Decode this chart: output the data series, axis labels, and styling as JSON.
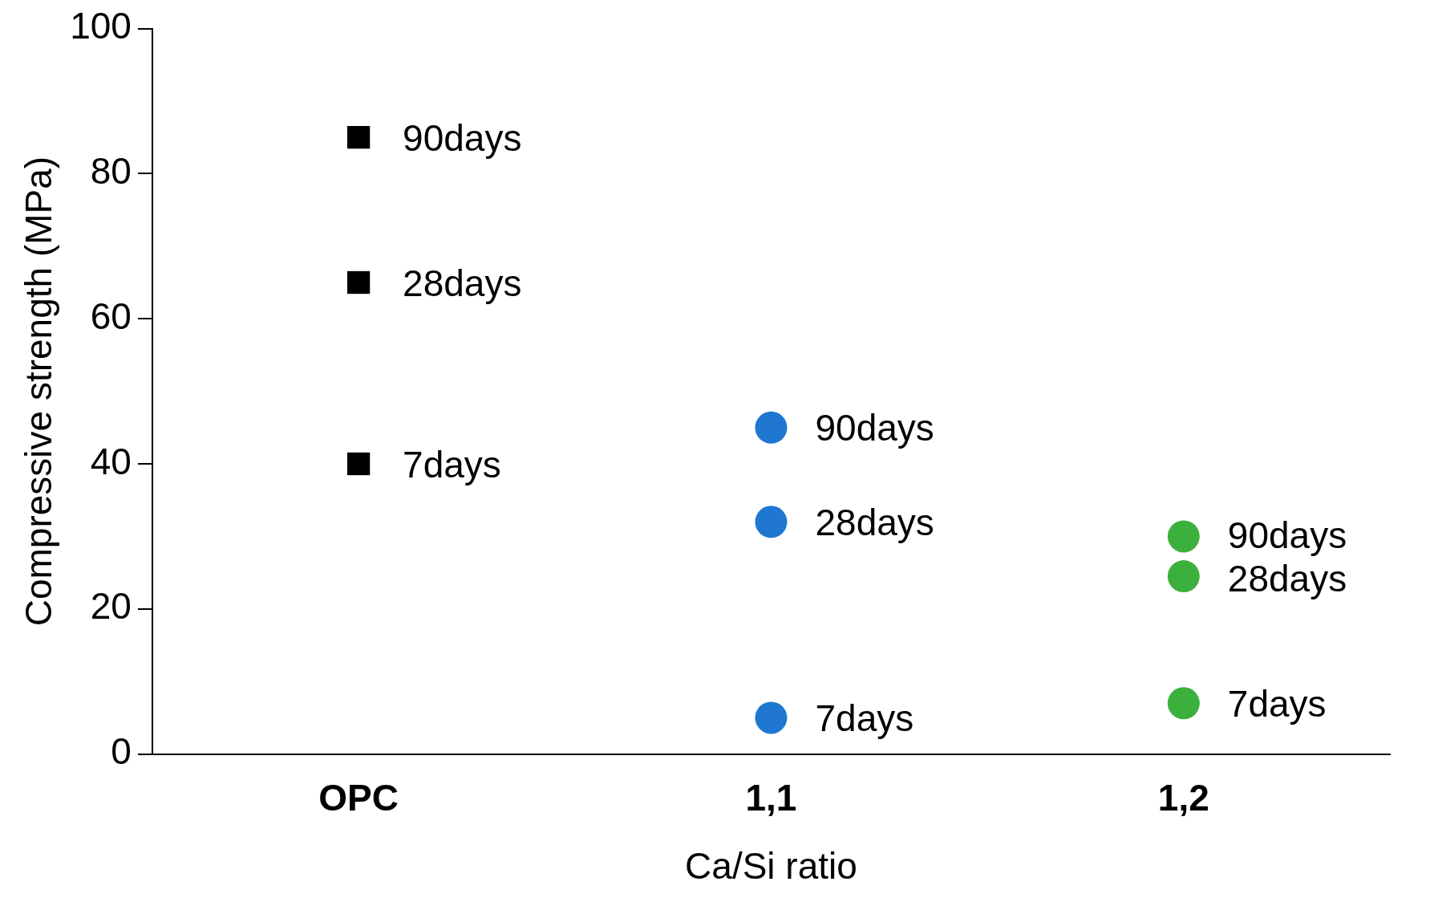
{
  "chart_data": {
    "type": "scatter",
    "xlabel": "Ca/Si ratio",
    "ylabel": "Compressive strength (MPa)",
    "categories": [
      "OPC",
      "1,1",
      "1,2"
    ],
    "series": [
      {
        "color": "#000000",
        "marker": "square",
        "x": [
          "OPC",
          "OPC",
          "OPC"
        ],
        "values": [
          85,
          65,
          40
        ]
      },
      {
        "color": "#1f77d2",
        "marker": "circle",
        "x": [
          "1,1",
          "1,1",
          "1,1"
        ],
        "values": [
          45,
          32,
          5
        ]
      },
      {
        "color": "#3cb03c",
        "marker": "circle",
        "x": [
          "1,2",
          "1,2",
          "1,2"
        ],
        "values": [
          30,
          24.5,
          7
        ]
      }
    ],
    "annotations": [
      {
        "text": "90days",
        "x": "OPC",
        "y": 85
      },
      {
        "text": "28days",
        "x": "OPC",
        "y": 65
      },
      {
        "text": "7days",
        "x": "OPC",
        "y": 40
      },
      {
        "text": "90days",
        "x": "1,1",
        "y": 45
      },
      {
        "text": "28days",
        "x": "1,1",
        "y": 32
      },
      {
        "text": "7days",
        "x": "1,1",
        "y": 5
      },
      {
        "text": "90days",
        "x": "1,2",
        "y": 30
      },
      {
        "text": "28days",
        "x": "1,2",
        "y": 24.5
      },
      {
        "text": "7days",
        "x": "1,2",
        "y": 7
      }
    ],
    "ylim": [
      0,
      100
    ],
    "yticks": [
      0,
      20,
      40,
      60,
      80,
      100
    ],
    "grid": false,
    "legend": false
  }
}
